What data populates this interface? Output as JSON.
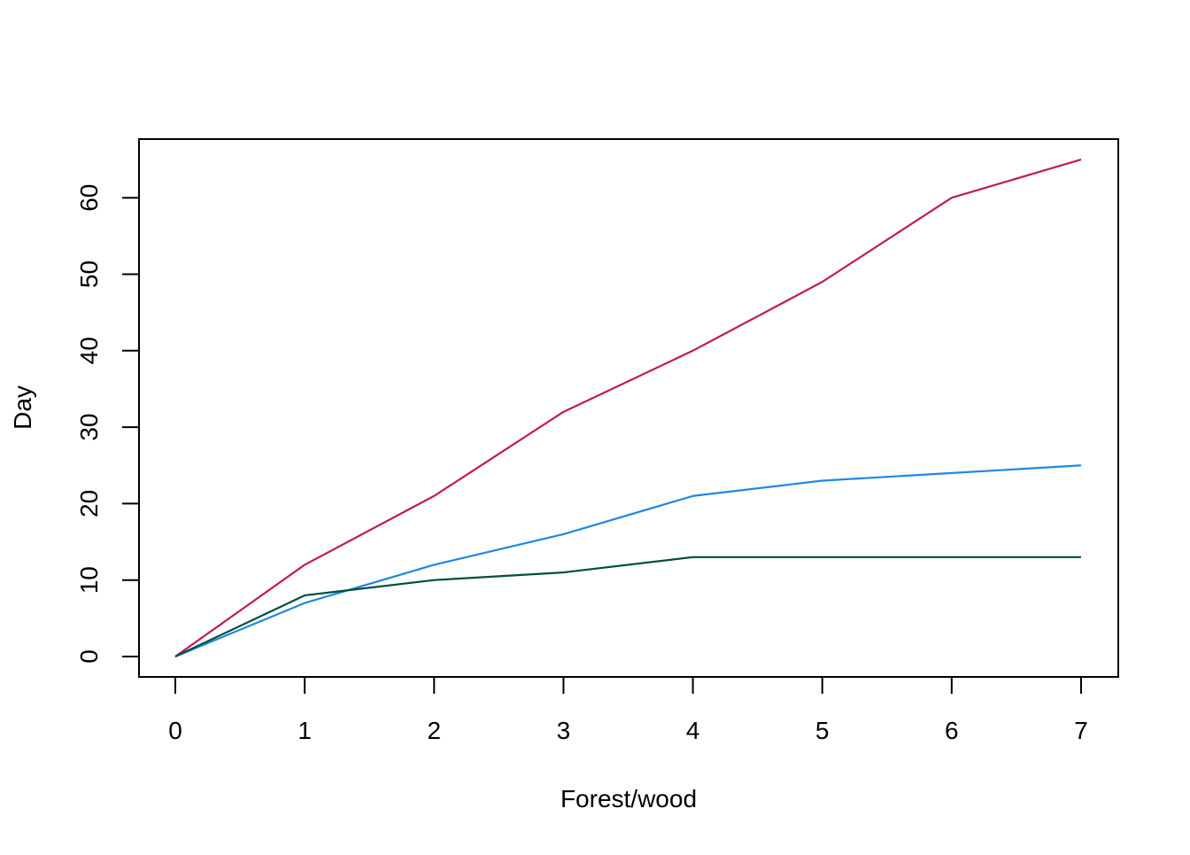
{
  "chart_data": {
    "type": "line",
    "title": "",
    "xlabel": "Forest/wood",
    "ylabel": "Day",
    "xlim": [
      0,
      7
    ],
    "ylim": [
      0,
      65
    ],
    "x_ticks": [
      0,
      1,
      2,
      3,
      4,
      5,
      6,
      7
    ],
    "y_ticks": [
      0,
      10,
      20,
      30,
      40,
      50,
      60
    ],
    "grid": false,
    "legend": "none",
    "x": [
      0,
      1,
      2,
      3,
      4,
      5,
      6,
      7
    ],
    "series": [
      {
        "color": "#c2185b",
        "values": [
          0,
          12,
          21,
          32,
          40,
          49,
          60,
          65
        ]
      },
      {
        "color": "#1e88e5",
        "values": [
          0,
          7,
          12,
          16,
          21,
          23,
          24,
          25
        ]
      },
      {
        "color": "#004d40",
        "values": [
          0,
          8,
          10,
          11,
          13,
          13,
          13,
          13
        ]
      }
    ]
  }
}
